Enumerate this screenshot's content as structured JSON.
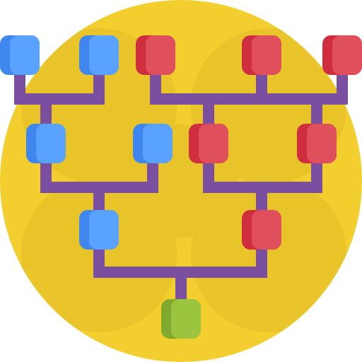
{
  "icon": {
    "name": "tournament-bracket-icon",
    "colors": {
      "circle": "#f2cf2e",
      "circle_pattern": "#e8c22a",
      "connector": "#7a4fa0",
      "blue_face": "#5aa2ff",
      "blue_shade": "#3f86ee",
      "red_face": "#e0505c",
      "red_shade": "#cf2e3e",
      "green_face": "#9bc43f",
      "green_shade": "#7faa2d"
    },
    "sides": {
      "left": {
        "label": "blue",
        "rounds": 3
      },
      "right": {
        "label": "red",
        "rounds": 3
      }
    },
    "winner": {
      "label": "green"
    }
  }
}
